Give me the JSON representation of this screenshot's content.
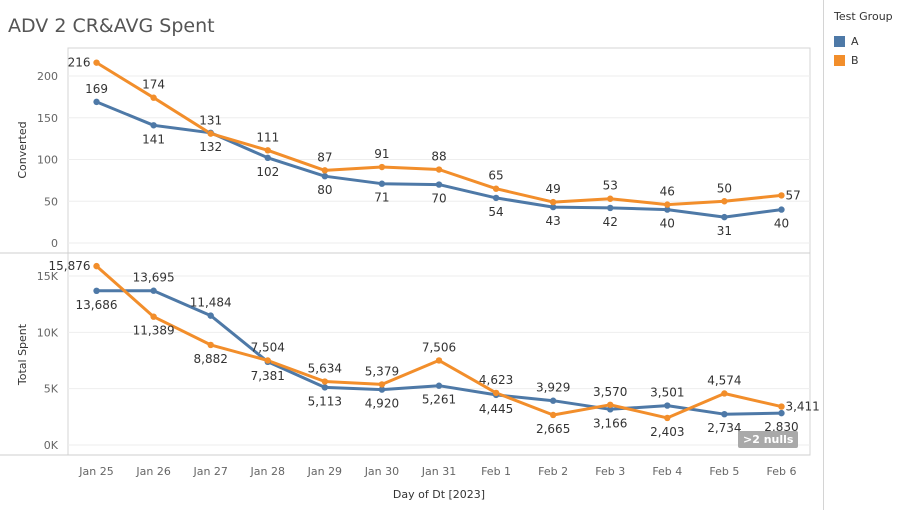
{
  "title": "ADV 2 CR&AVG Spent",
  "legend": {
    "title": "Test Group",
    "items": [
      {
        "label": "A",
        "color": "#4e79a7"
      },
      {
        "label": "B",
        "color": "#f28e2b"
      }
    ]
  },
  "nulls_badge": ">2 nulls",
  "chart_data": [
    {
      "type": "line",
      "categories": [
        "Jan 25",
        "Jan 26",
        "Jan 27",
        "Jan 28",
        "Jan 29",
        "Jan 30",
        "Jan 31",
        "Feb 1",
        "Feb 2",
        "Feb 3",
        "Feb 4",
        "Feb 5",
        "Feb 6"
      ],
      "xlabel": "Day of Dt [2023]",
      "ylabel": "Converted",
      "ylim": [
        0,
        210
      ],
      "yticks": [
        0,
        50,
        100,
        150,
        200
      ],
      "ytick_labels": [
        "0",
        "50",
        "100",
        "150",
        "200"
      ],
      "grid": true,
      "series": [
        {
          "name": "A",
          "color": "#4e79a7",
          "values": [
            169,
            141,
            132,
            102,
            80,
            71,
            70,
            54,
            43,
            42,
            40,
            31,
            40
          ],
          "labels": [
            "169",
            "141",
            "132",
            "102",
            "80",
            "71",
            "70",
            "54",
            "43",
            "42",
            "40",
            "31",
            "40"
          ]
        },
        {
          "name": "B",
          "color": "#f28e2b",
          "values": [
            216,
            174,
            131,
            111,
            87,
            91,
            88,
            65,
            49,
            53,
            46,
            50,
            57
          ],
          "labels": [
            "216",
            "174",
            "131",
            "111",
            "87",
            "91",
            "88",
            "65",
            "49",
            "53",
            "46",
            "50",
            "57"
          ]
        }
      ]
    },
    {
      "type": "line",
      "categories": [
        "Jan 25",
        "Jan 26",
        "Jan 27",
        "Jan 28",
        "Jan 29",
        "Jan 30",
        "Jan 31",
        "Feb 1",
        "Feb 2",
        "Feb 3",
        "Feb 4",
        "Feb 5",
        "Feb 6"
      ],
      "xlabel": "Day of Dt [2023]",
      "ylabel": "Total Spent",
      "ylim": [
        0,
        16500
      ],
      "yticks": [
        0,
        5000,
        10000,
        15000
      ],
      "ytick_labels": [
        "0K",
        "5K",
        "10K",
        "15K"
      ],
      "grid": true,
      "series": [
        {
          "name": "A",
          "color": "#4e79a7",
          "values": [
            13686,
            13695,
            11484,
            7381,
            5113,
            4920,
            5261,
            4445,
            3929,
            3166,
            3501,
            2734,
            2830
          ],
          "labels": [
            "13,686",
            "13,695",
            "11,484",
            "7,381",
            "5,113",
            "4,920",
            "5,261",
            "4,445",
            "3,929",
            "3,166",
            "3,501",
            "2,734",
            "2,830"
          ]
        },
        {
          "name": "B",
          "color": "#f28e2b",
          "values": [
            15876,
            11389,
            8882,
            7504,
            5634,
            5379,
            7506,
            4623,
            2665,
            3570,
            2403,
            4574,
            3411
          ],
          "labels": [
            "15,876",
            "11,389",
            "8,882",
            "7,504",
            "5,634",
            "5,379",
            "7,506",
            "4,623",
            "2,665",
            "3,570",
            "2,403",
            "4,574",
            "3,411"
          ]
        }
      ]
    }
  ]
}
